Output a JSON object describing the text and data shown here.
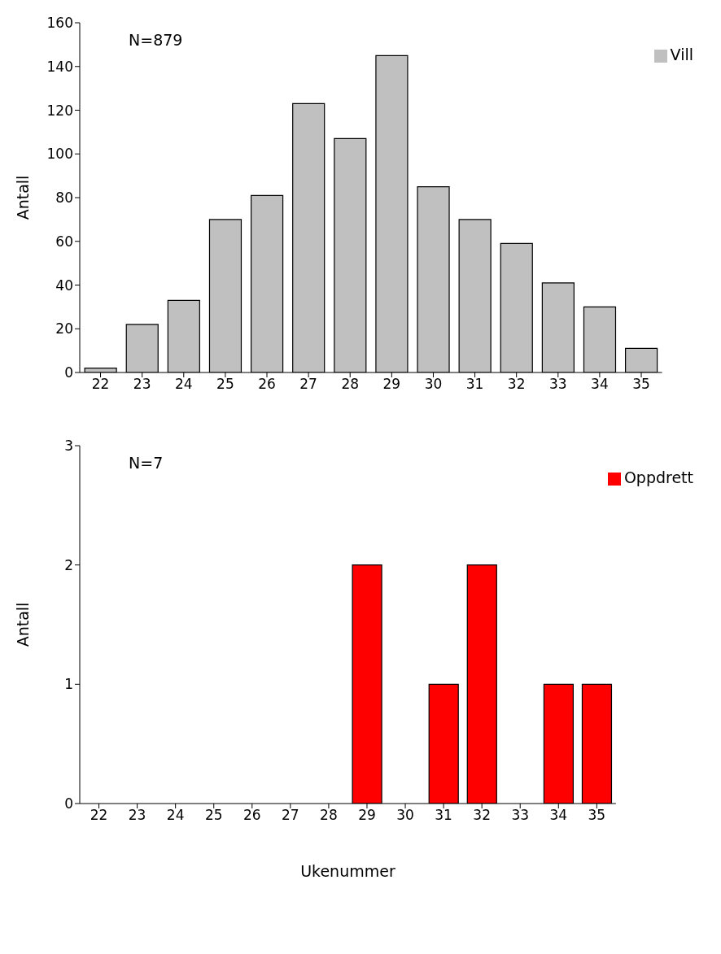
{
  "chart_data": [
    {
      "type": "bar",
      "ylabel": "Antall",
      "categories": [
        "22",
        "23",
        "24",
        "25",
        "26",
        "27",
        "28",
        "29",
        "30",
        "31",
        "32",
        "33",
        "34",
        "35"
      ],
      "series": [
        {
          "name": "Vill",
          "color": "#c0c0c0",
          "values": [
            2,
            22,
            33,
            70,
            81,
            123,
            107,
            145,
            85,
            70,
            59,
            41,
            30,
            11
          ]
        }
      ],
      "ylim": [
        0,
        160
      ],
      "yticks": [
        0,
        20,
        40,
        60,
        80,
        100,
        120,
        140,
        160
      ],
      "grid": false,
      "legend": "top right",
      "annotations": [
        "N=879"
      ]
    },
    {
      "type": "bar",
      "ylabel": "Antall",
      "xlabel": "Ukenummer",
      "categories": [
        "22",
        "23",
        "24",
        "25",
        "26",
        "27",
        "28",
        "29",
        "30",
        "31",
        "32",
        "33",
        "34",
        "35"
      ],
      "series": [
        {
          "name": "Oppdrett",
          "color": "#ff0000",
          "values": [
            0,
            0,
            0,
            0,
            0,
            0,
            0,
            2,
            0,
            1,
            2,
            0,
            1,
            1
          ]
        }
      ],
      "ylim": [
        0,
        3
      ],
      "yticks": [
        0,
        1,
        2,
        3
      ],
      "grid": false,
      "legend": "top right",
      "annotations": [
        "N=7"
      ]
    }
  ]
}
